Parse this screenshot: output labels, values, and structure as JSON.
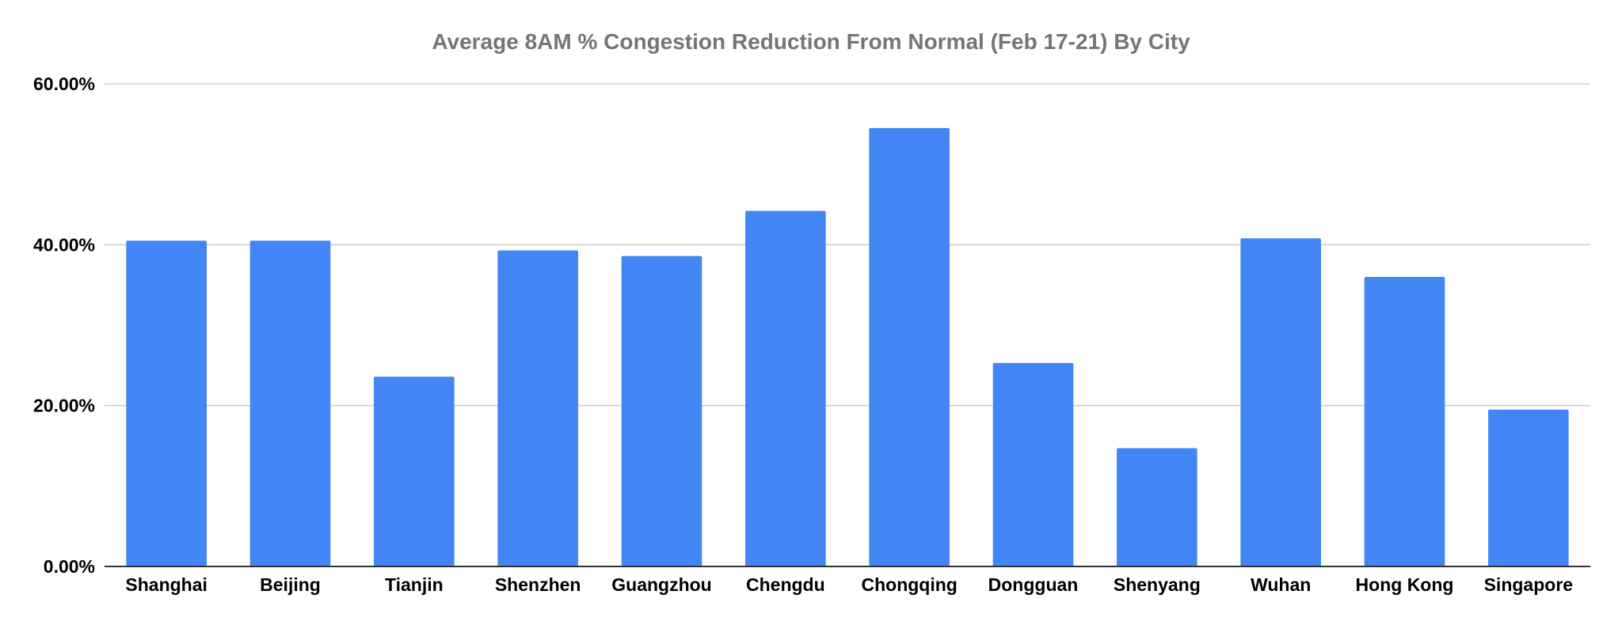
{
  "chart_data": {
    "type": "bar",
    "title": "Average 8AM % Congestion Reduction From Normal (Feb 17-21) By City",
    "xlabel": "",
    "ylabel": "",
    "categories": [
      "Shanghai",
      "Beijing",
      "Tianjin",
      "Shenzhen",
      "Guangzhou",
      "Chengdu",
      "Chongqing",
      "Dongguan",
      "Shenyang",
      "Wuhan",
      "Hong Kong",
      "Singapore"
    ],
    "values": [
      40.5,
      40.5,
      23.6,
      39.3,
      38.6,
      44.2,
      54.5,
      25.3,
      14.7,
      40.8,
      36.0,
      19.5
    ],
    "ylim": [
      0,
      60
    ],
    "yticks": [
      0,
      20,
      40,
      60
    ],
    "ytick_labels": [
      "0.00%",
      "20.00%",
      "40.00%",
      "60.00%"
    ],
    "grid": true,
    "legend": "none",
    "bar_color": "#4285f4"
  }
}
